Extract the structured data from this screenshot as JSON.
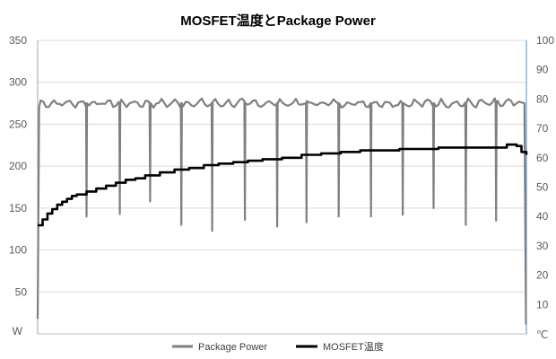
{
  "chart_data": {
    "type": "line",
    "title": "MOSFET温度とPackage Power",
    "y_left": {
      "unit_label": "W",
      "ticks": [
        50,
        100,
        150,
        200,
        250,
        300,
        350
      ],
      "range": [
        0,
        350
      ]
    },
    "y_right": {
      "unit_label": "℃",
      "ticks": [
        10,
        20,
        30,
        40,
        50,
        60,
        70,
        80,
        90,
        100
      ],
      "range": [
        0,
        100
      ]
    },
    "x": {
      "range": [
        0,
        100
      ],
      "tick_labels": []
    },
    "grid": true,
    "legend_position": "bottom",
    "series": [
      {
        "name": "Package Power",
        "axis": "left",
        "color": "#808080",
        "baseline": 275,
        "start_value": 18,
        "end_value": 12,
        "drops": [
          {
            "x": 10.0,
            "value": 140
          },
          {
            "x": 16.8,
            "value": 143
          },
          {
            "x": 23.0,
            "value": 158
          },
          {
            "x": 29.4,
            "value": 130
          },
          {
            "x": 35.7,
            "value": 123
          },
          {
            "x": 42.4,
            "value": 136
          },
          {
            "x": 49.0,
            "value": 128
          },
          {
            "x": 55.0,
            "value": 133
          },
          {
            "x": 61.6,
            "value": 140
          },
          {
            "x": 68.2,
            "value": 140
          },
          {
            "x": 74.7,
            "value": 142
          },
          {
            "x": 81.0,
            "value": 150
          },
          {
            "x": 87.6,
            "value": 130
          },
          {
            "x": 93.8,
            "value": 135
          }
        ]
      },
      {
        "name": "MOSFET温度",
        "axis": "right",
        "color": "#000000",
        "points": [
          [
            0,
            37
          ],
          [
            1,
            39
          ],
          [
            2,
            41
          ],
          [
            3,
            42.5
          ],
          [
            4,
            44
          ],
          [
            5,
            45
          ],
          [
            6,
            46
          ],
          [
            7,
            47
          ],
          [
            8,
            47.5
          ],
          [
            10,
            48.5
          ],
          [
            12,
            49.5
          ],
          [
            14,
            50.5
          ],
          [
            16,
            51.5
          ],
          [
            18,
            52.5
          ],
          [
            20,
            53
          ],
          [
            22,
            54
          ],
          [
            25,
            55
          ],
          [
            28,
            56
          ],
          [
            31,
            56.5
          ],
          [
            34,
            57.5
          ],
          [
            37,
            58
          ],
          [
            40,
            58.5
          ],
          [
            43,
            59
          ],
          [
            46,
            59.5
          ],
          [
            50,
            60
          ],
          [
            54,
            61
          ],
          [
            58,
            61.5
          ],
          [
            62,
            62
          ],
          [
            66,
            62.5
          ],
          [
            70,
            62.5
          ],
          [
            74,
            63
          ],
          [
            78,
            63
          ],
          [
            82,
            63.5
          ],
          [
            86,
            63.5
          ],
          [
            90,
            63.5
          ],
          [
            94,
            63.5
          ],
          [
            96,
            64.5
          ],
          [
            98,
            64
          ],
          [
            99,
            62
          ],
          [
            100,
            61
          ]
        ]
      }
    ]
  }
}
